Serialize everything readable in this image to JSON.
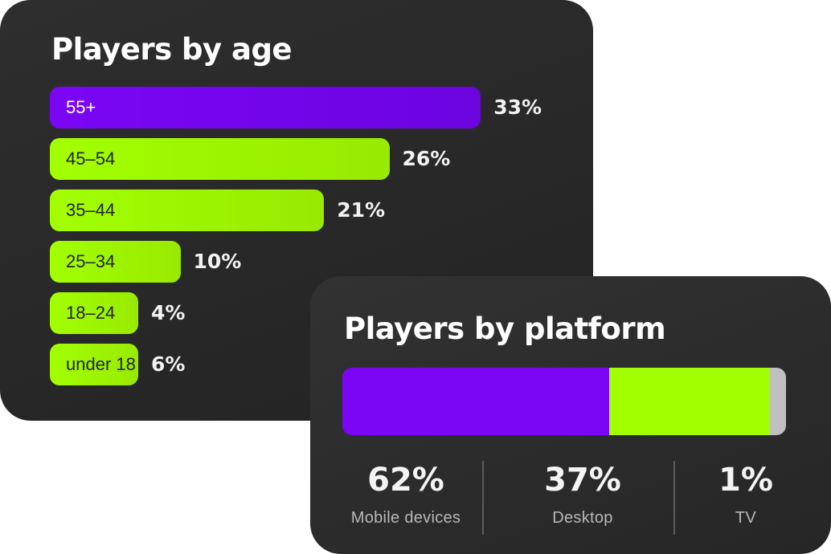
{
  "age_chart": {
    "title": "Players by age"
  },
  "platform_chart": {
    "title": "Players by platform",
    "stats": [
      {
        "value": "62%",
        "label": "Mobile devices"
      },
      {
        "value": "37%",
        "label": "Desktop"
      },
      {
        "value": "1%",
        "label": "TV"
      }
    ]
  },
  "colors": {
    "purple": "#7a06f5",
    "green": "#98ea00",
    "green_bright": "#a2ff00",
    "grey": "#c0c0c0",
    "card_bg": "#262626"
  },
  "chart_data": [
    {
      "type": "bar",
      "orientation": "horizontal",
      "title": "Players by age",
      "categories": [
        "55+",
        "45–54",
        "35–44",
        "25–34",
        "18–24",
        "under 18"
      ],
      "values": [
        33,
        26,
        21,
        10,
        4,
        6
      ],
      "value_labels": [
        "33%",
        "26%",
        "21%",
        "10%",
        "4%",
        "6%"
      ],
      "highlight": [
        "55+"
      ],
      "unit": "%"
    },
    {
      "type": "bar",
      "orientation": "stacked-horizontal",
      "title": "Players by platform",
      "categories": [
        "Mobile devices",
        "Desktop",
        "TV"
      ],
      "values": [
        62,
        37,
        1
      ],
      "value_labels": [
        "62%",
        "37%",
        "1%"
      ],
      "unit": "%"
    }
  ]
}
